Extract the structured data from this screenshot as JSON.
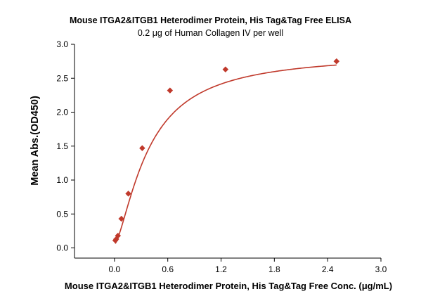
{
  "chart_data": {
    "type": "scatter",
    "title": "Mouse ITGA2&ITGB1 Heterodimer Protein, His Tag&Tag Free ELISA",
    "subtitle": "0.2 μg of  Human Collagen IV  per well",
    "xlabel": "Mouse ITGA2&ITGB1 Heterodimer Protein, His Tag&Tag Free Conc. (μg/mL)",
    "ylabel": "Mean Abs.(OD450)",
    "xlim": [
      -0.45,
      3.0
    ],
    "ylim": [
      -0.15,
      3.0
    ],
    "x_ticks": [
      0.0,
      0.6,
      1.2,
      1.8,
      2.4,
      3.0
    ],
    "x_tick_labels": [
      "0.0",
      "0.6",
      "1.2",
      "1.8",
      "2.4",
      "3.0"
    ],
    "y_ticks": [
      0.0,
      0.5,
      1.0,
      1.5,
      2.0,
      2.5,
      3.0
    ],
    "y_tick_labels": [
      "0.0",
      "0.5",
      "1.0",
      "1.5",
      "2.0",
      "2.5",
      "3.0"
    ],
    "grid": false,
    "legend": "none",
    "series": [
      {
        "marker": "diamond",
        "color": "#c0392b",
        "x": [
          0.0098,
          0.0195,
          0.039,
          0.078,
          0.156,
          0.3125,
          0.625,
          1.25,
          2.5
        ],
        "y": [
          0.11,
          0.13,
          0.18,
          0.43,
          0.8,
          1.47,
          2.32,
          2.63,
          2.75
        ]
      }
    ],
    "fit": {
      "type": "curve",
      "color": "#c0392b",
      "model": "4PL",
      "bottom": 0.05,
      "top": 2.87,
      "ec50": 0.385,
      "hill": 1.45
    }
  }
}
